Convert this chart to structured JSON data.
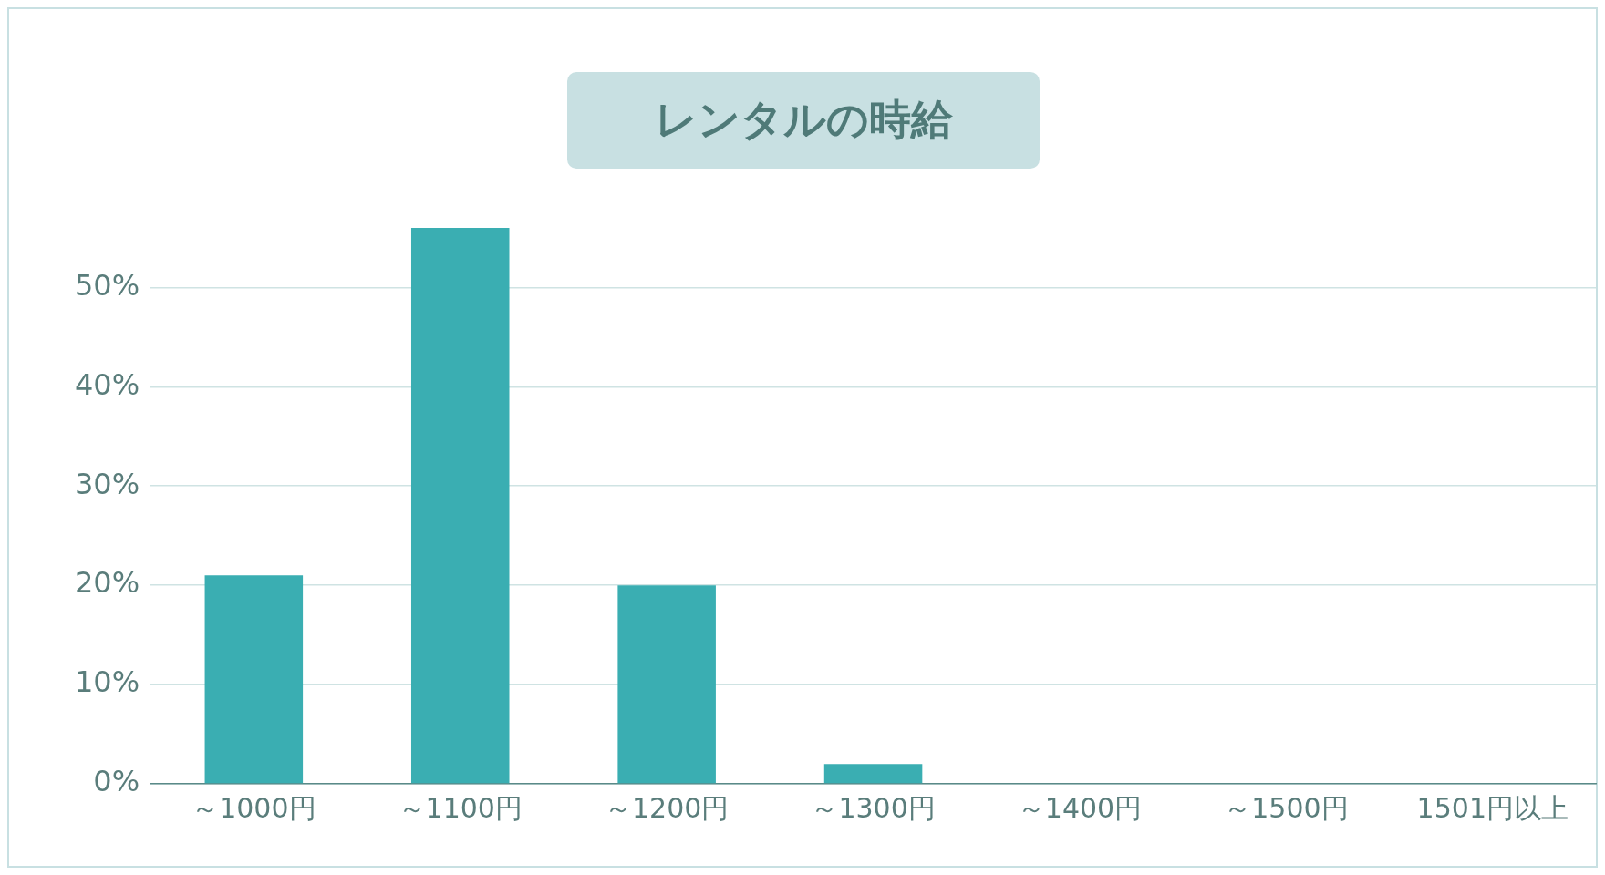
{
  "chart_data": {
    "type": "bar",
    "title": "レンタルの時給",
    "categories": [
      "～1000円",
      "～1100円",
      "～1200円",
      "～1300円",
      "～1400円",
      "～1500円",
      "1501円以上"
    ],
    "values": [
      21,
      56,
      20,
      2,
      0,
      0,
      0
    ],
    "color": "#3aaeb2",
    "yticks": [
      {
        "value": 0,
        "label": "0%"
      },
      {
        "value": 10,
        "label": "10%"
      },
      {
        "value": 20,
        "label": "20%"
      },
      {
        "value": 30,
        "label": "30%"
      },
      {
        "value": 40,
        "label": "40%"
      },
      {
        "value": 50,
        "label": "50%"
      }
    ],
    "ylim": [
      0,
      56
    ],
    "grid": "y",
    "legend": false
  }
}
